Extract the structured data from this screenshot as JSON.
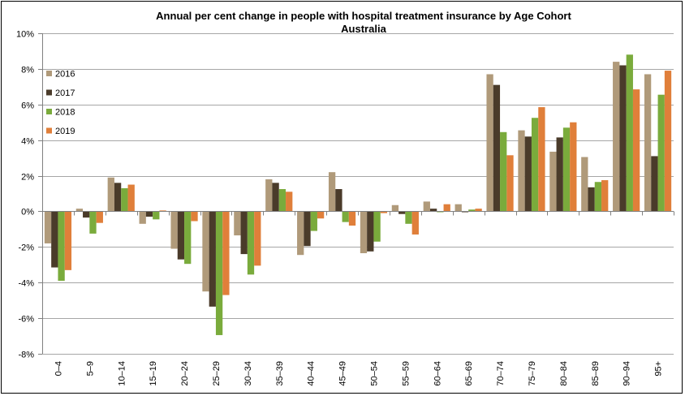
{
  "chart_data": {
    "type": "bar",
    "title": "Annual per cent change in people with hospital treatment insurance by Age Cohort",
    "subtitle": "Australia",
    "xlabel": "",
    "ylabel": "",
    "ylim": [
      -8,
      10
    ],
    "yticks": [
      10,
      8,
      6,
      4,
      2,
      0,
      -2,
      -4,
      -6,
      -8
    ],
    "ytick_labels": [
      "10%",
      "8%",
      "6%",
      "4%",
      "2%",
      "0%",
      "-2%",
      "-4%",
      "-6%",
      "-8%"
    ],
    "grid": true,
    "legend_position": "left",
    "categories": [
      "0–4",
      "5–9",
      "10–14",
      "15–19",
      "20–24",
      "25–29",
      "30–34",
      "35–39",
      "40–44",
      "45–49",
      "50–54",
      "55–59",
      "60–64",
      "65–69",
      "70–74",
      "75–79",
      "80–84",
      "85–89",
      "90–94",
      "95+"
    ],
    "series": [
      {
        "name": "2016",
        "color": "#b09a7a",
        "values": [
          -1.8,
          0.15,
          1.9,
          -0.7,
          -2.1,
          -4.5,
          -1.35,
          1.8,
          -2.45,
          2.2,
          -2.35,
          0.35,
          0.55,
          0.4,
          7.7,
          4.55,
          3.35,
          3.05,
          8.4,
          7.7
        ]
      },
      {
        "name": "2017",
        "color": "#4a3b2a",
        "values": [
          -3.15,
          -0.35,
          1.6,
          -0.3,
          -2.7,
          -5.35,
          -2.4,
          1.6,
          -1.95,
          1.25,
          -2.25,
          -0.15,
          0.15,
          -0.05,
          7.1,
          4.2,
          4.15,
          1.35,
          8.2,
          3.1
        ]
      },
      {
        "name": "2018",
        "color": "#7aab3c",
        "values": [
          -3.9,
          -1.25,
          1.3,
          -0.45,
          -2.95,
          -6.95,
          -3.55,
          1.25,
          -1.1,
          -0.6,
          -1.7,
          -0.7,
          -0.05,
          0.1,
          4.45,
          5.25,
          4.7,
          1.65,
          8.8,
          6.55
        ]
      },
      {
        "name": "2019",
        "color": "#e07f3a",
        "values": [
          -3.3,
          -0.65,
          1.5,
          0.05,
          -0.55,
          -4.7,
          -3.05,
          1.1,
          -0.4,
          -0.8,
          -0.1,
          -1.3,
          0.4,
          0.15,
          3.15,
          5.85,
          5.0,
          1.75,
          6.85,
          7.9
        ]
      }
    ]
  }
}
